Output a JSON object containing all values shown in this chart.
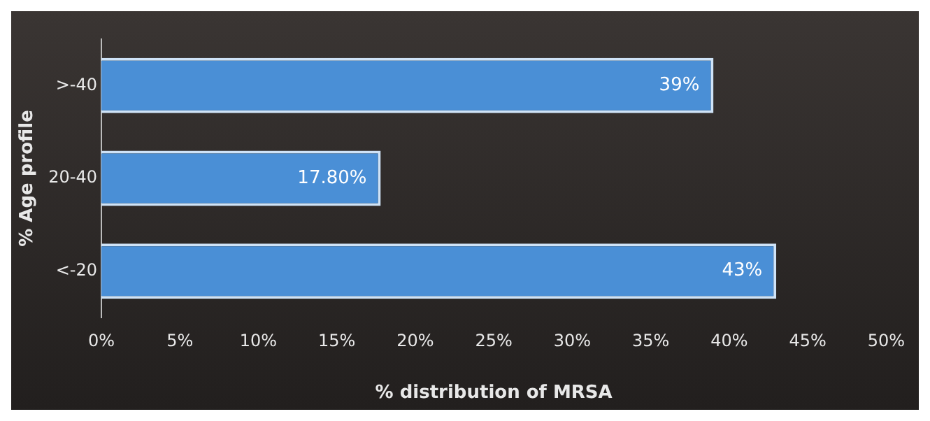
{
  "chart_data": {
    "type": "bar",
    "orientation": "horizontal",
    "xlabel": "% distribution of MRSA",
    "ylabel": "% Age profile",
    "categories": [
      ">-40",
      "20-40",
      "<-20"
    ],
    "values": [
      39,
      17.8,
      43
    ],
    "value_labels": [
      "39%",
      "17.80%",
      "43%"
    ],
    "color": "#4a8fd6",
    "xlim": [
      0,
      50
    ],
    "xticks": [
      {
        "value": 0,
        "label": "0%"
      },
      {
        "value": 5,
        "label": "5%"
      },
      {
        "value": 10,
        "label": "10%"
      },
      {
        "value": 15,
        "label": "15%"
      },
      {
        "value": 20,
        "label": "20%"
      },
      {
        "value": 25,
        "label": "25%"
      },
      {
        "value": 30,
        "label": "30%"
      },
      {
        "value": 35,
        "label": "35%"
      },
      {
        "value": 40,
        "label": "40%"
      },
      {
        "value": 45,
        "label": "45%"
      },
      {
        "value": 50,
        "label": "50%"
      }
    ],
    "grid": false,
    "legend": false
  }
}
